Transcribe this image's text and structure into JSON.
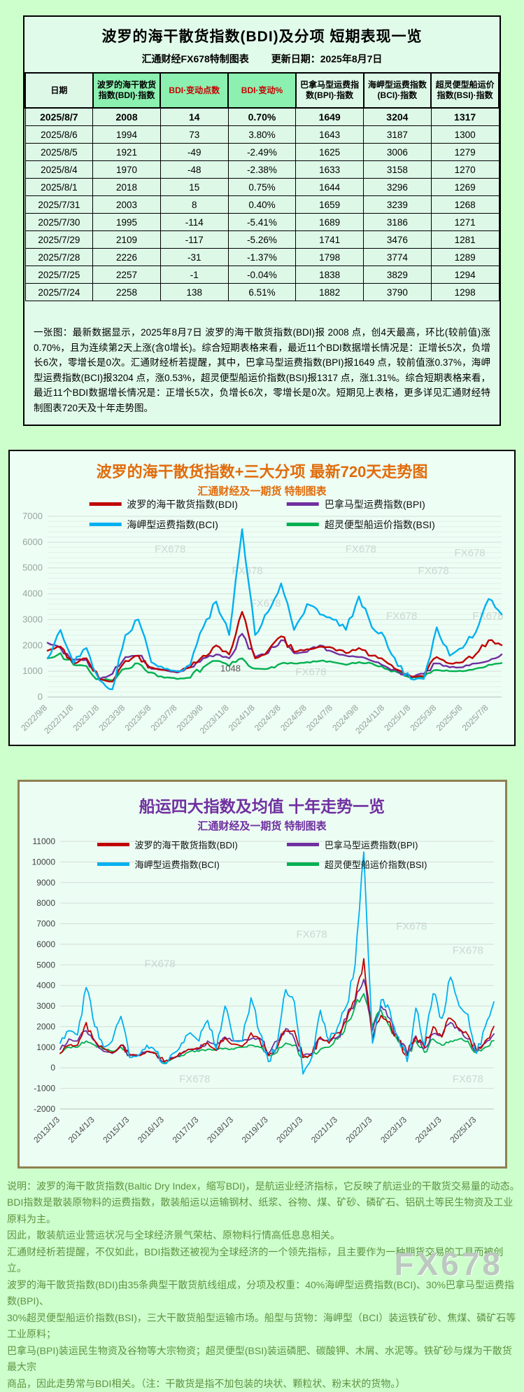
{
  "page": {
    "watermark": "FX678",
    "bg": "#ccffcc"
  },
  "table_panel": {
    "title": "波罗的海干散货指数(BDI)及分项 短期表现一览",
    "source": "汇通财经FX678特制图表",
    "updated": "更新日期：2025年8月7日",
    "headers": [
      {
        "label": "日期",
        "highlight": false,
        "accent": "black"
      },
      {
        "label": "波罗的海干散货指数(BDI)·指数",
        "highlight": true,
        "accent": "black"
      },
      {
        "label": "BDI·变动点数",
        "highlight": true,
        "accent": "red"
      },
      {
        "label": "BDI·变动%",
        "highlight": true,
        "accent": "red"
      },
      {
        "label": "巴拿马型运费指数(BPI)·指数",
        "highlight": false,
        "accent": "black"
      },
      {
        "label": "海岬型运费指数(BCI)·指数",
        "highlight": false,
        "accent": "black"
      },
      {
        "label": "超灵便型船运价指数(BSI)·指数",
        "highlight": false,
        "accent": "black"
      }
    ],
    "rows": [
      [
        "2025/8/7",
        "2008",
        "14",
        "0.70%",
        "1649",
        "3204",
        "1317"
      ],
      [
        "2025/8/6",
        "1994",
        "73",
        "3.80%",
        "1643",
        "3187",
        "1300"
      ],
      [
        "2025/8/5",
        "1921",
        "-49",
        "-2.49%",
        "1625",
        "3006",
        "1279"
      ],
      [
        "2025/8/4",
        "1970",
        "-48",
        "-2.38%",
        "1633",
        "3158",
        "1270"
      ],
      [
        "2025/8/1",
        "2018",
        "15",
        "0.75%",
        "1644",
        "3296",
        "1269"
      ],
      [
        "2025/7/31",
        "2003",
        "8",
        "0.40%",
        "1659",
        "3239",
        "1268"
      ],
      [
        "2025/7/30",
        "1995",
        "-114",
        "-5.41%",
        "1689",
        "3186",
        "1271"
      ],
      [
        "2025/7/29",
        "2109",
        "-117",
        "-5.26%",
        "1741",
        "3476",
        "1281"
      ],
      [
        "2025/7/28",
        "2226",
        "-31",
        "-1.37%",
        "1798",
        "3774",
        "1289"
      ],
      [
        "2025/7/25",
        "2257",
        "-1",
        "-0.04%",
        "1838",
        "3829",
        "1294"
      ],
      [
        "2025/7/24",
        "2258",
        "138",
        "6.51%",
        "1882",
        "3790",
        "1298"
      ]
    ],
    "summary": "一张图：最新数据显示，2025年8月7日 波罗的海干散货指数(BDI)报 2008 点，创4天最高，环比(较前值)涨0.70%，且为连续第2天上涨(含0增长)。综合短期表格来看，最近11个BDI数据增长情况是：正增长5次，负增长6次，零增长是0次。汇通财经析若提醒，其中，巴拿马型运费指数(BPI)报1649 点，较前值涨0.37%，海岬型运费指数(BCI)报3204 点，涨0.53%，超灵便型船运价指数(BSI)报1317 点，涨1.31%。综合短期表格来看，最近11个BDI数据增长情况是：正增长5次，负增长6次，零增长是0次。短期见上表格，更多详见汇通财经特制图表720天及十年走势图。"
  },
  "chart_data": [
    {
      "id": "trend720",
      "type": "line",
      "title": "波罗的海干散货指数+三大分项  最新720天走势图",
      "subtitle": "汇通财经及一期货  特制图表",
      "ylim": [
        0,
        7000
      ],
      "ytick_step": 1000,
      "grid": true,
      "legend_position": "top-center",
      "n": 36,
      "xtick_every": 2,
      "xticklabels": [
        "2022/9/8",
        "2022/11/8",
        "2023/1/8",
        "2023/3/8",
        "2023/5/8",
        "2023/7/8",
        "2023/9/8",
        "2023/11/8",
        "2024/1/8",
        "2024/3/8",
        "2024/5/8",
        "2024/7/8",
        "2024/9/8",
        "2024/11/8",
        "2025/1/8",
        "2025/3/8",
        "2025/5/8",
        "2025/7/8"
      ],
      "series": [
        {
          "name": "波罗的海干散货指数(BDI)",
          "color": "#c00000",
          "values": [
            1800,
            1950,
            1300,
            1500,
            680,
            600,
            1400,
            1600,
            1150,
            1050,
            1000,
            1150,
            1600,
            2000,
            1650,
            3300,
            1500,
            1800,
            2350,
            1750,
            1850,
            1950,
            1900,
            1700,
            1900,
            1600,
            1400,
            1050,
            800,
            800,
            1550,
            1300,
            1350,
            1650,
            2200,
            2008
          ]
        },
        {
          "name": "巴拿马型运费指数(BPI)",
          "color": "#7030a0",
          "values": [
            2100,
            1900,
            1450,
            1450,
            700,
            900,
            1550,
            1600,
            1100,
            1050,
            950,
            1150,
            1500,
            1650,
            1500,
            2450,
            1550,
            1700,
            2200,
            1700,
            1750,
            2000,
            1750,
            1600,
            1550,
            1400,
            1200,
            1000,
            750,
            900,
            1300,
            1150,
            1150,
            1300,
            1400,
            1649
          ]
        },
        {
          "name": "海岬型运费指数(BCI)",
          "color": "#00b0f0",
          "values": [
            1500,
            2600,
            1300,
            1900,
            650,
            300,
            2400,
            3000,
            1350,
            1100,
            1000,
            1250,
            2700,
            3700,
            2400,
            6500,
            2400,
            3300,
            4400,
            2600,
            3600,
            3200,
            3000,
            2600,
            3900,
            2700,
            2300,
            1200,
            700,
            700,
            2700,
            1600,
            1900,
            2500,
            3800,
            3204
          ]
        },
        {
          "name": "超灵便型船运价指数(BSI)",
          "color": "#00b050",
          "values": [
            1500,
            1700,
            1250,
            1200,
            700,
            650,
            1100,
            1300,
            950,
            750,
            700,
            750,
            1150,
            1400,
            1200,
            1500,
            1100,
            1100,
            1300,
            1300,
            1350,
            1400,
            1350,
            1250,
            1350,
            1300,
            1100,
            950,
            750,
            750,
            1050,
            1000,
            1000,
            1100,
            1250,
            1317
          ]
        }
      ],
      "annotations": [
        {
          "index": 13,
          "value": 1100,
          "text": "1048"
        }
      ]
    },
    {
      "id": "trend10y",
      "type": "line",
      "title": "船运四大指数及均值 十年走势一览",
      "subtitle": "汇通财经及一期货 特制图表",
      "ylim": [
        -2000,
        11000
      ],
      "ytick_step": 1000,
      "grid": true,
      "legend_position": "top-center",
      "n": 51,
      "xtick_every": 4,
      "xticklabels": [
        "2013/1/3",
        "2014/1/3",
        "2015/1/3",
        "2016/1/3",
        "2017/1/3",
        "2018/1/3",
        "2019/1/3",
        "2020/1/3",
        "2021/1/3",
        "2022/1/3",
        "2023/1/3",
        "2024/1/3",
        "2025/1/3"
      ],
      "series": [
        {
          "name": "波罗的海干散货指数(BDI)",
          "color": "#c00000",
          "values": [
            700,
            1100,
            1100,
            2200,
            1300,
            950,
            750,
            1100,
            650,
            600,
            800,
            700,
            300,
            450,
            700,
            900,
            950,
            1200,
            850,
            1450,
            1150,
            1050,
            1700,
            1350,
            600,
            950,
            1800,
            1800,
            500,
            600,
            1500,
            1200,
            1700,
            2300,
            3300,
            5300,
            1400,
            2550,
            2240,
            1350,
            600,
            1500,
            1000,
            2000,
            1500,
            2400,
            1900,
            1600,
            800,
            1300,
            2008
          ]
        },
        {
          "name": "巴拿马型运费指数(BPI)",
          "color": "#7030a0",
          "values": [
            900,
            1400,
            1300,
            1800,
            1300,
            800,
            700,
            1100,
            600,
            600,
            800,
            700,
            300,
            500,
            700,
            900,
            900,
            1300,
            1100,
            1500,
            1300,
            1300,
            1400,
            1450,
            700,
            1300,
            1900,
            1400,
            600,
            700,
            1400,
            1300,
            1500,
            2400,
            3200,
            4300,
            1800,
            3000,
            2400,
            1450,
            700,
            1550,
            950,
            1650,
            1550,
            2200,
            1800,
            1400,
            750,
            1200,
            1649
          ]
        },
        {
          "name": "海岬型运费指数(BCI)",
          "color": "#00b0f0",
          "values": [
            1200,
            1800,
            1600,
            3900,
            2000,
            1000,
            1300,
            2500,
            500,
            600,
            1100,
            800,
            200,
            700,
            1200,
            1700,
            1300,
            2300,
            900,
            3000,
            1300,
            1300,
            3400,
            1700,
            300,
            1100,
            3800,
            3200,
            -300,
            500,
            2800,
            1300,
            2000,
            3000,
            5000,
            10485,
            1200,
            3300,
            2800,
            1500,
            300,
            2900,
            1100,
            3600,
            2400,
            4400,
            3000,
            2600,
            700,
            2000,
            3204
          ]
        },
        {
          "name": "超灵便型船运价指数(BSI)",
          "color": "#00b050",
          "values": [
            700,
            1000,
            1000,
            1300,
            1100,
            900,
            800,
            1000,
            600,
            600,
            800,
            700,
            250,
            450,
            600,
            800,
            800,
            900,
            850,
            950,
            900,
            1000,
            1100,
            1000,
            600,
            750,
            1200,
            1100,
            500,
            600,
            900,
            1000,
            1400,
            2200,
            3000,
            3600,
            2000,
            2800,
            2000,
            1250,
            650,
            1300,
            750,
            1400,
            1100,
            1300,
            1400,
            1300,
            750,
            1000,
            1317
          ]
        }
      ],
      "annotations": []
    }
  ],
  "footer": {
    "lines": [
      "说明：波罗的海干散货指数(Baltic Dry Index，缩写BDI)，是航运业经济指标，它反映了航运业的干散货交易量的动态。",
      "BDI指数是散装原物料的运费指数，散装船运以运输钢材、纸浆、谷物、煤、矿砂、磷矿石、铝矾土等民生物资及工业原料为主。",
      "因此，散装航运业营运状况与全球经济景气荣枯、原物料行情高低息息相关。",
      "汇通财经析若提醒，不仅如此，BDI指数还被视为全球经济的一个领先指标，且主要作为一种期货交易的工具而被创立。",
      "波罗的海干散货指数(BDI)由35条典型干散货航线组成，分项及权重：40%海岬型运费指数(BCI)、30%巴拿马型运费指数(BPI)、",
      "30%超灵便型船运价指数(BSI)，三大干散货船型运输市场。船型与货物：海岬型（BCI）装运铁矿砂、焦煤、磷矿石等工业原料；",
      "巴拿马(BPI)装运民生物资及谷物等大宗物资；超灵便型(BSI)装运磷肥、碳酸钾、木屑、水泥等。铁矿砂与煤为干散货最大宗",
      "商品，因此走势常与BDI相关。（注：干散货是指不加包装的块状、颗粒状、粉末状的货物。）"
    ]
  }
}
